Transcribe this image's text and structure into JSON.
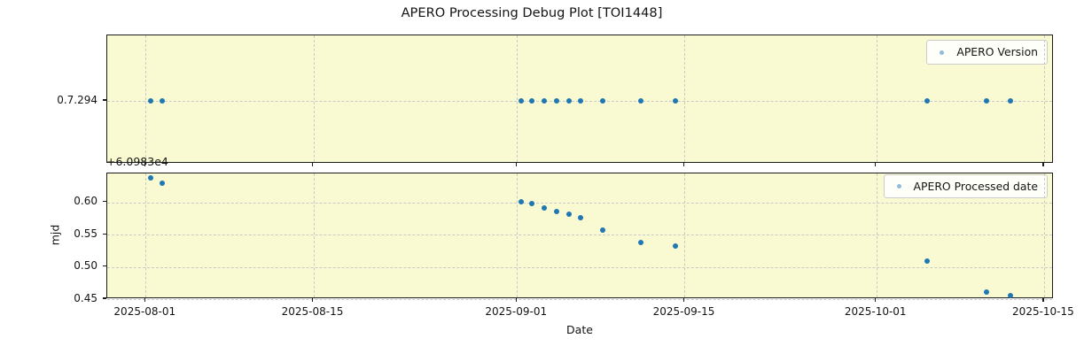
{
  "title": "APERO Processing Debug Plot [TOI1448]",
  "colors": {
    "plot_background": "#fafad2",
    "point": "#1f77b4",
    "legend_marker": "#92badb",
    "grid": "#c9c9c9",
    "spine": "#1b1b1b"
  },
  "chart_data": {
    "type": "scatter",
    "title": "APERO Processing Debug Plot [TOI1448]",
    "xlabel": "Date",
    "grid": true,
    "x_tick_labels": [
      "2025-08-01",
      "2025-08-15",
      "2025-09-01",
      "2025-09-15",
      "2025-10-01",
      "2025-10-15"
    ],
    "x_tick_day_offsets": [
      0,
      14,
      31,
      45,
      61,
      75
    ],
    "xlim_days_from_2025_08_01": [
      -3.2,
      75.8
    ],
    "subplots": [
      {
        "name": "version",
        "legend_label": "APERO Version",
        "legend_position": "upper right",
        "y_tick_labels": [
          "0.7.294"
        ],
        "version_value": "0.7.294",
        "dates": [
          "2025-08-01",
          "2025-08-02",
          "2025-09-01",
          "2025-09-02",
          "2025-09-03",
          "2025-09-04",
          "2025-09-05",
          "2025-09-06",
          "2025-09-08",
          "2025-09-11",
          "2025-09-14",
          "2025-10-05",
          "2025-10-10",
          "2025-10-12"
        ],
        "day_offsets": [
          0.44,
          1.42,
          31.33,
          32.24,
          33.25,
          34.33,
          35.34,
          36.28,
          38.18,
          41.34,
          44.2,
          65.22,
          70.2,
          72.22
        ],
        "values": [
          "0.7.294",
          "0.7.294",
          "0.7.294",
          "0.7.294",
          "0.7.294",
          "0.7.294",
          "0.7.294",
          "0.7.294",
          "0.7.294",
          "0.7.294",
          "0.7.294",
          "0.7.294",
          "0.7.294",
          "0.7.294"
        ]
      },
      {
        "name": "processed_date",
        "legend_label": "APERO Processed date",
        "legend_position": "upper right",
        "ylabel": "mjd",
        "y_offset_text": "+6.0983e4",
        "y_tick_labels": [
          "0.60",
          "0.55",
          "0.50",
          "0.45"
        ],
        "y_tick_values": [
          0.6,
          0.55,
          0.5,
          0.45
        ],
        "ylim": [
          0.45,
          0.645
        ],
        "dates": [
          "2025-08-01",
          "2025-08-02",
          "2025-09-01",
          "2025-09-02",
          "2025-09-03",
          "2025-09-04",
          "2025-09-05",
          "2025-09-06",
          "2025-09-08",
          "2025-09-11",
          "2025-09-14",
          "2025-10-05",
          "2025-10-10",
          "2025-10-12"
        ],
        "day_offsets": [
          0.44,
          1.42,
          31.33,
          32.24,
          33.25,
          34.33,
          35.34,
          36.28,
          38.18,
          41.34,
          44.2,
          65.22,
          70.2,
          72.22
        ],
        "values": [
          0.638,
          0.63,
          0.601,
          0.598,
          0.591,
          0.586,
          0.582,
          0.577,
          0.557,
          0.538,
          0.532,
          0.509,
          0.461,
          0.455
        ]
      }
    ]
  }
}
